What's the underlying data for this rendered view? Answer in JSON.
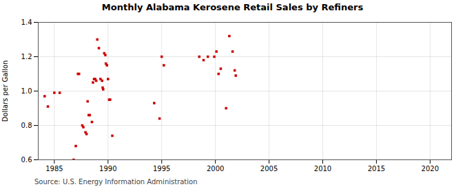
{
  "chart_data": {
    "type": "scatter",
    "title": "Monthly Alabama Kerosene Retail Sales by Refiners",
    "ylabel": "Dollars per Gallon",
    "source": "Source: U.S. Energy Information Administration",
    "xlim": [
      1983.5,
      2022
    ],
    "ylim": [
      0.6,
      1.4
    ],
    "xticks": [
      1985,
      1990,
      1995,
      2000,
      2005,
      2010,
      2015,
      2020
    ],
    "yticks": [
      0.6,
      0.8,
      {
        "value": 1,
        "label": "1.0"
      },
      1.2,
      1.4
    ],
    "grid": true,
    "color": "#cc0000",
    "marker": "square",
    "x": [
      1984.1,
      1984.4,
      1985.0,
      1985.5,
      1986.8,
      1987.0,
      1987.2,
      1987.3,
      1987.6,
      1987.7,
      1987.9,
      1988.0,
      1988.1,
      1988.2,
      1988.3,
      1988.5,
      1988.6,
      1988.7,
      1988.8,
      1988.9,
      1989.0,
      1989.15,
      1989.3,
      1989.45,
      1989.5,
      1989.55,
      1989.65,
      1989.75,
      1989.8,
      1989.9,
      1990.0,
      1990.1,
      1990.2,
      1990.4,
      1994.3,
      1994.8,
      1995.0,
      1995.2,
      1998.5,
      1998.9,
      1999.3,
      1999.9,
      2000.1,
      2000.3,
      2000.5,
      2001.0,
      2001.3,
      2001.6,
      2001.8,
      2001.9
    ],
    "values": [
      0.97,
      0.91,
      0.99,
      0.99,
      0.6,
      0.68,
      1.1,
      1.1,
      0.8,
      0.79,
      0.76,
      0.75,
      0.94,
      0.86,
      0.86,
      0.82,
      1.05,
      1.07,
      1.07,
      1.06,
      1.3,
      1.25,
      1.07,
      1.06,
      1.02,
      1.01,
      1.22,
      1.21,
      1.16,
      1.15,
      1.07,
      0.95,
      0.95,
      0.74,
      0.93,
      0.84,
      1.2,
      1.15,
      1.2,
      1.18,
      1.2,
      1.2,
      1.23,
      1.1,
      1.13,
      0.9,
      1.32,
      1.23,
      1.12,
      1.09
    ]
  }
}
